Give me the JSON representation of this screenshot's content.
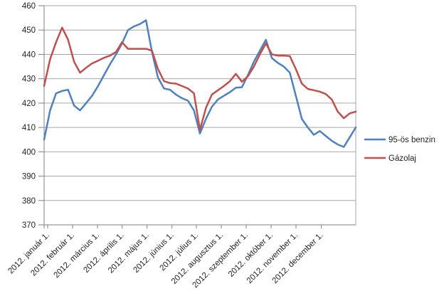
{
  "chart_data": {
    "type": "line",
    "title": "",
    "ylim": [
      370,
      460
    ],
    "grid": "horizontal",
    "legend_position": "right",
    "y_ticks": [
      370,
      380,
      390,
      400,
      410,
      420,
      430,
      440,
      450,
      460
    ],
    "x_tick_labels": [
      "2012. január 1.",
      "2012. február 1.",
      "2012. március 1.",
      "2012. április 1.",
      "2012. május 1.",
      "2012. június 1.",
      "2012. július 1.",
      "2012. augusztus 1.",
      "2012. szeptember 1.",
      "2012. október 1.",
      "2012. november 1.",
      "2012. december 1."
    ],
    "series": [
      {
        "name": "95-ös benzin",
        "color": "#4F81BD",
        "values": [
          405,
          417,
          424,
          425,
          425.5,
          419,
          417,
          420,
          423,
          427,
          431.5,
          436,
          440,
          444.5,
          450,
          451.5,
          452.5,
          454,
          441,
          430.5,
          426,
          425.5,
          423.5,
          422,
          421,
          417,
          407.5,
          413.5,
          418.5,
          421.5,
          423,
          424.5,
          426.3,
          426.5,
          431.5,
          437,
          441.5,
          446,
          438.5,
          436.5,
          435,
          432.5,
          423,
          413.5,
          410,
          407,
          408.5,
          406.5,
          404.5,
          403,
          402,
          406,
          410
        ]
      },
      {
        "name": "Gázolaj",
        "color": "#C0504D",
        "values": [
          427,
          438,
          445,
          451,
          446,
          437,
          432.5,
          434.5,
          436.3,
          437.4,
          438.6,
          439.5,
          441,
          445,
          442.3,
          442.3,
          442.3,
          442.3,
          441.5,
          434,
          429,
          428.2,
          428,
          427,
          426,
          424,
          409,
          418,
          423.5,
          425.3,
          427,
          429,
          432,
          428.8,
          431,
          435,
          440,
          444.5,
          440,
          439.5,
          439.5,
          439.3,
          434,
          428,
          425.8,
          425.3,
          424.7,
          423.7,
          421.5,
          416.5,
          413.8,
          415.8,
          416.5
        ]
      }
    ]
  }
}
